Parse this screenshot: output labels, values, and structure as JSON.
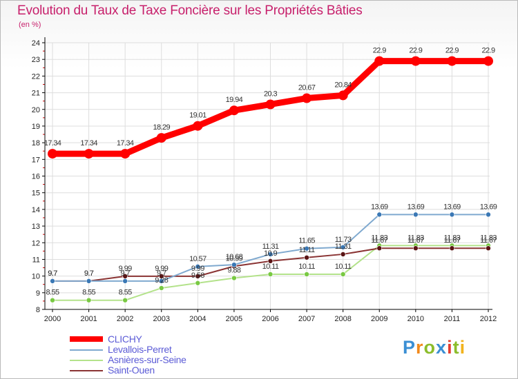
{
  "colors": {
    "title": "#c71f6b",
    "legend_text": "#5b5bd6",
    "axis": "#000000",
    "grid": "#dddddd"
  },
  "brand": {
    "text": "Proxiti",
    "letter_colors": [
      "#3b8fd4",
      "#f28a1c",
      "#8cbd2c",
      "#3b8fd4",
      "#e53d2f",
      "#8cbd2c",
      "#f2b31c"
    ]
  },
  "chart_data": {
    "type": "line",
    "title": "Evolution du Taux de Taxe Foncière sur les Propriétés Bâties",
    "subtitle": "(en %)",
    "x": [
      "2000",
      "2001",
      "2002",
      "2003",
      "2004",
      "2005",
      "2006",
      "2007",
      "2008",
      "2009",
      "2010",
      "2011",
      "2012"
    ],
    "ylim": [
      8,
      24
    ],
    "y_ticks": [
      8,
      9,
      10,
      11,
      12,
      13,
      14,
      15,
      16,
      17,
      18,
      19,
      20,
      21,
      22,
      23,
      24
    ],
    "grid": true,
    "legend_position": "bottom-left",
    "series": [
      {
        "name": "CLICHY",
        "color": "#ff0000",
        "width": 9,
        "marker": 7,
        "values": [
          17.34,
          17.34,
          17.34,
          18.29,
          19.01,
          19.94,
          20.3,
          20.67,
          20.84,
          22.9,
          22.9,
          22.9,
          22.9
        ],
        "labels": [
          "17.34",
          "17.34",
          "17.34",
          "18.29",
          "19.01",
          "19.94",
          "20.3",
          "20.67",
          "20.84",
          "22.9",
          "22.9",
          "22.9",
          "22.9"
        ]
      },
      {
        "name": "Levallois-Perret",
        "color": "#7fa9cf",
        "marker_color": "#3a78b5",
        "width": 2,
        "marker": 3.5,
        "values": [
          9.7,
          9.7,
          9.7,
          9.7,
          10.57,
          10.68,
          11.31,
          11.65,
          11.73,
          13.69,
          13.69,
          13.69,
          13.69
        ],
        "labels": [
          "9.7",
          "9.7",
          "9.7",
          "9.7",
          "10.57",
          "10.68",
          "11.31",
          "11.65",
          "11.73",
          "13.69",
          "13.69",
          "13.69",
          "13.69"
        ]
      },
      {
        "name": "Asnières-sur-Seine",
        "color": "#b3e28a",
        "marker_color": "#79c943",
        "width": 2,
        "marker": 3.5,
        "values": [
          8.55,
          8.55,
          8.55,
          9.28,
          9.58,
          9.88,
          10.11,
          10.11,
          10.11,
          11.83,
          11.83,
          11.83,
          11.83
        ],
        "labels": [
          "8.55",
          "8.55",
          "8.55",
          "9.28",
          "9.58",
          "9.88",
          "10.11",
          "10.11",
          "10.11",
          "11.83",
          "11.83",
          "11.83",
          "11.83"
        ]
      },
      {
        "name": "Saint-Ouen",
        "color": "#8a3333",
        "marker_color": "#5a1414",
        "width": 2,
        "marker": 3.5,
        "values": [
          9.7,
          9.7,
          9.99,
          9.99,
          9.99,
          10.59,
          10.9,
          11.11,
          11.31,
          11.67,
          11.67,
          11.67,
          11.67
        ],
        "labels": [
          "9.7",
          "9.7",
          "9.99",
          "9.99",
          "9.99",
          "10.59",
          "10.9",
          "11.11",
          "11.31",
          "11.67",
          "11.67",
          "11.67",
          "11.67"
        ]
      }
    ]
  }
}
